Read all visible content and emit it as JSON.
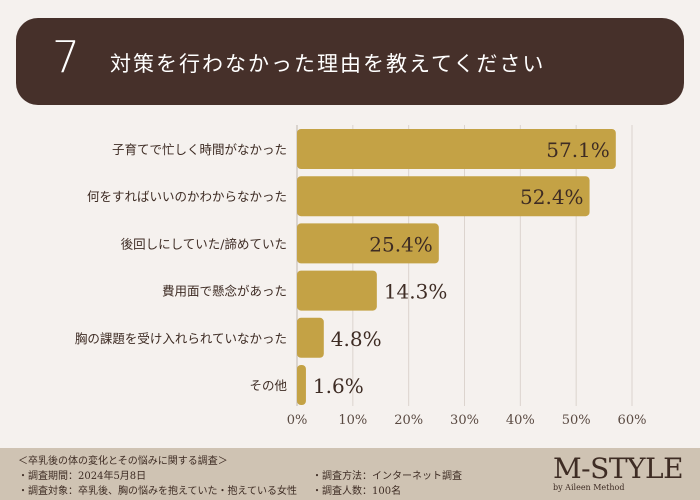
{
  "header": {
    "number": "7",
    "title": "対策を行わなかった理由を教えてください"
  },
  "chart_data": {
    "type": "bar",
    "orientation": "horizontal",
    "categories": [
      "子育てで忙しく時間がなかった",
      "何をすればいいのかわからなかった",
      "後回しにしていた/諦めていた",
      "費用面で懸念があった",
      "胸の課題を受け入れられていなかった",
      "その他"
    ],
    "values": [
      57.1,
      52.4,
      25.4,
      14.3,
      4.8,
      1.6
    ],
    "value_labels": [
      "57.1%",
      "52.4%",
      "25.4%",
      "14.3%",
      "4.8%",
      "1.6%"
    ],
    "xlim": [
      0,
      60
    ],
    "xticks": [
      "0%",
      "10%",
      "20%",
      "30%",
      "40%",
      "50%",
      "60%"
    ],
    "grid": true,
    "bar_color": "#c4a245"
  },
  "footer": {
    "survey_title": "＜卒乳後の体の変化とその悩みに関する調査＞",
    "period": "・調査期間：2024年5月8日",
    "target": "・調査対象：卒乳後、胸の悩みを抱えていた・抱えている女性",
    "method": "・調査方法：インターネット調査",
    "count": "・調査人数：100名",
    "logo": "M-STYLE",
    "logo_sub": "by Aileen Method"
  }
}
